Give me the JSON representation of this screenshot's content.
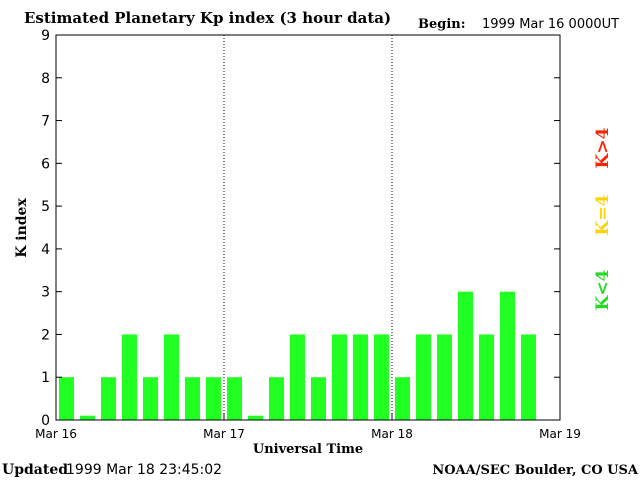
{
  "chart_data": {
    "type": "bar",
    "title": "Estimated Planetary Kp index (3 hour data)",
    "begin_label": "Begin:",
    "begin_value": "1999 Mar 16 0000UT",
    "xlabel": "Universal Time",
    "ylabel": "K index",
    "ylim": [
      0,
      9
    ],
    "y_ticks": [
      "0",
      "1",
      "2",
      "3",
      "4",
      "5",
      "6",
      "7",
      "8",
      "9"
    ],
    "x_ticks": [
      "Mar 16",
      "Mar 17",
      "Mar 18",
      "Mar 19"
    ],
    "bars_per_day": 8,
    "values": [
      1,
      0.1,
      1,
      2,
      1,
      2,
      1,
      1,
      1,
      0.1,
      1,
      2,
      1,
      2,
      2,
      2,
      1,
      2,
      2,
      3,
      2,
      3,
      2
    ],
    "grid": "vertical dotted day separators",
    "legend": [
      {
        "label": "K<4",
        "color": "#22dd22"
      },
      {
        "label": "K=4",
        "color": "#ffd200"
      },
      {
        "label": "K>4",
        "color": "#ff2200"
      }
    ],
    "legend_placement": "right",
    "bar_color": "#22ff22"
  },
  "footer": {
    "updated_label": "Updated",
    "updated_value": "1999 Mar 18 23:45:02",
    "source": "NOAA/SEC Boulder, CO USA"
  }
}
